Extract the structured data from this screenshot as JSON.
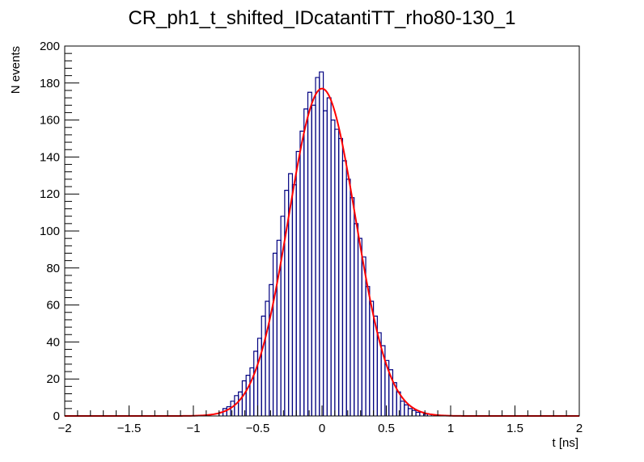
{
  "chart_data": {
    "type": "histogram",
    "title": "CR_ph1_t_shifted_IDcatantiTT_rho80-130_1",
    "xlabel": "t [ns]",
    "ylabel": "N events",
    "xlim": [
      -2,
      2
    ],
    "ylim": [
      0,
      200
    ],
    "x_major_ticks": [
      -2,
      -1.5,
      -1,
      -0.5,
      0,
      0.5,
      1,
      1.5,
      2
    ],
    "x_tick_labels": [
      "−2",
      "−1.5",
      "−1",
      "−0.5",
      "0",
      "0.5",
      "1",
      "1.5",
      "2"
    ],
    "y_major_ticks": [
      0,
      20,
      40,
      60,
      80,
      100,
      120,
      140,
      160,
      180,
      200
    ],
    "y_tick_labels": [
      "0",
      "20",
      "40",
      "60",
      "80",
      "100",
      "120",
      "140",
      "160",
      "180",
      "200"
    ],
    "histogram": {
      "name": "data",
      "color": "#000080",
      "bin_width": 0.01,
      "bin_low_edges": [
        -0.8,
        -0.77,
        -0.74,
        -0.71,
        -0.68,
        -0.65,
        -0.62,
        -0.59,
        -0.56,
        -0.53,
        -0.5,
        -0.47,
        -0.44,
        -0.41,
        -0.38,
        -0.35,
        -0.32,
        -0.29,
        -0.26,
        -0.23,
        -0.2,
        -0.17,
        -0.14,
        -0.11,
        -0.08,
        -0.05,
        -0.02,
        0.01,
        0.04,
        0.07,
        0.1,
        0.13,
        0.16,
        0.19,
        0.22,
        0.25,
        0.28,
        0.31,
        0.34,
        0.37,
        0.4,
        0.43,
        0.46,
        0.49,
        0.52,
        0.55,
        0.58,
        0.61,
        0.64,
        0.67,
        0.7,
        0.73,
        0.76,
        0.79,
        0.82
      ],
      "counts": [
        2,
        4,
        5,
        8,
        11,
        13,
        19,
        22,
        26,
        35,
        42,
        54,
        62,
        71,
        88,
        95,
        108,
        122,
        131,
        125,
        143,
        154,
        166,
        175,
        168,
        183,
        186,
        165,
        172,
        160,
        155,
        150,
        138,
        128,
        118,
        104,
        96,
        86,
        70,
        62,
        54,
        45,
        38,
        30,
        25,
        18,
        13,
        8,
        6,
        4,
        3,
        2,
        2,
        1,
        1
      ]
    },
    "fit": {
      "name": "gaussian fit",
      "color": "#ff0000",
      "function": "gaus",
      "amplitude": 177,
      "mean": 0.0,
      "sigma": 0.26
    }
  }
}
